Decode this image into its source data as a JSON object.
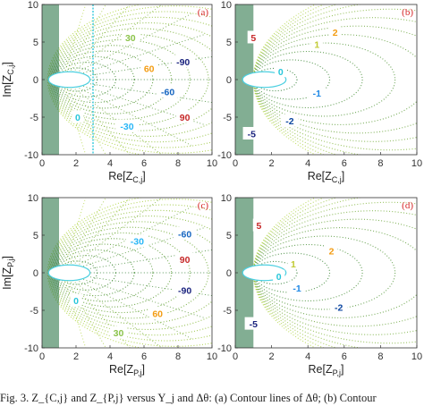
{
  "caption": "Fig. 3.   Z_{C,j} and Z_{P,j} versus Y_j and Δθ: (a) Contour lines of Δθ; (b) Contour",
  "colors": {
    "label_red": "#d62728",
    "frame": "#333333"
  },
  "chart_data": [
    {
      "type": "line",
      "panel_label": "(a)",
      "xlabel": "Re[Z_{C,j}]",
      "ylabel": "Im[Z_{C,j}]",
      "xlim": [
        0,
        10
      ],
      "ylim": [
        -10,
        10
      ],
      "xticks": [
        0,
        2,
        4,
        6,
        8,
        10
      ],
      "yticks": [
        10,
        5,
        0,
        -5,
        -10
      ],
      "grid": false,
      "contour_labels": [
        {
          "text": "30",
          "x": 5.2,
          "y": 5.6,
          "color": "#8bc34a"
        },
        {
          "text": "60",
          "x": 6.3,
          "y": 1.5,
          "color": "#f39c12"
        },
        {
          "text": "-90",
          "x": 8.3,
          "y": 2.4,
          "color": "#1a237e"
        },
        {
          "text": "-60",
          "x": 7.4,
          "y": -1.6,
          "color": "#1565c0"
        },
        {
          "text": "90",
          "x": 8.4,
          "y": -5.0,
          "color": "#c62828"
        },
        {
          "text": "0",
          "x": 2.1,
          "y": -5.0,
          "color": "#26c6da"
        },
        {
          "text": "-30",
          "x": 5.0,
          "y": -6.2,
          "color": "#29b6f6"
        }
      ]
    },
    {
      "type": "line",
      "panel_label": "(b)",
      "xlabel": "Re[Z_{C,j}]",
      "ylabel": "",
      "xlim": [
        0,
        10
      ],
      "ylim": [
        -10,
        10
      ],
      "xticks": [
        0,
        2,
        4,
        6,
        8,
        10
      ],
      "yticks": [
        10,
        5,
        0,
        -5,
        -10
      ],
      "grid": false,
      "contour_labels": [
        {
          "text": "5",
          "x": 1.0,
          "y": 5.6,
          "color": "#c62828"
        },
        {
          "text": "2",
          "x": 5.5,
          "y": 6.3,
          "color": "#f39c12"
        },
        {
          "text": "1",
          "x": 4.5,
          "y": 4.7,
          "color": "#c0ca33"
        },
        {
          "text": "0",
          "x": 2.5,
          "y": 1.1,
          "color": "#26c6da"
        },
        {
          "text": "-1",
          "x": 4.5,
          "y": -1.8,
          "color": "#1e88e5"
        },
        {
          "text": "-2",
          "x": 3.0,
          "y": -5.5,
          "color": "#0d47a1"
        },
        {
          "text": "-5",
          "x": 0.9,
          "y": -7.2,
          "color": "#1a237e"
        }
      ]
    },
    {
      "type": "line",
      "panel_label": "(c)",
      "xlabel": "Re[Z_{P,j}]",
      "ylabel": "Im[Z_{P,j}]",
      "xlim": [
        0,
        10
      ],
      "ylim": [
        -10,
        10
      ],
      "xticks": [
        0,
        2,
        4,
        6,
        8,
        10
      ],
      "yticks": [
        10,
        5,
        0,
        -5,
        -10
      ],
      "grid": false,
      "contour_labels": [
        {
          "text": "-30",
          "x": 5.6,
          "y": 4.2,
          "color": "#29b6f6"
        },
        {
          "text": "-60",
          "x": 8.4,
          "y": 5.2,
          "color": "#1565c0"
        },
        {
          "text": "90",
          "x": 8.4,
          "y": 1.8,
          "color": "#c62828"
        },
        {
          "text": "-90",
          "x": 8.4,
          "y": -2.3,
          "color": "#1a237e"
        },
        {
          "text": "0",
          "x": 2.0,
          "y": -3.7,
          "color": "#26c6da"
        },
        {
          "text": "60",
          "x": 6.8,
          "y": -5.4,
          "color": "#f39c12"
        },
        {
          "text": "30",
          "x": 4.5,
          "y": -8.0,
          "color": "#8bc34a"
        }
      ]
    },
    {
      "type": "line",
      "panel_label": "(d)",
      "xlabel": "Re[Z_{P,j}]",
      "ylabel": "",
      "xlim": [
        0,
        10
      ],
      "ylim": [
        -10,
        10
      ],
      "xticks": [
        0,
        2,
        4,
        6,
        8,
        10
      ],
      "yticks": [
        10,
        5,
        0,
        -5,
        -10
      ],
      "grid": false,
      "contour_labels": [
        {
          "text": "5",
          "x": 1.3,
          "y": 6.3,
          "color": "#c62828"
        },
        {
          "text": "2",
          "x": 5.3,
          "y": 2.9,
          "color": "#f39c12"
        },
        {
          "text": "1",
          "x": 3.2,
          "y": 1.2,
          "color": "#c0ca33"
        },
        {
          "text": "0",
          "x": 2.4,
          "y": -0.5,
          "color": "#26c6da"
        },
        {
          "text": "-1",
          "x": 3.4,
          "y": -2.0,
          "color": "#1e88e5"
        },
        {
          "text": "-2",
          "x": 5.7,
          "y": -4.6,
          "color": "#0d47a1"
        },
        {
          "text": "-5",
          "x": 1.0,
          "y": -6.8,
          "color": "#1a237e"
        }
      ]
    }
  ]
}
